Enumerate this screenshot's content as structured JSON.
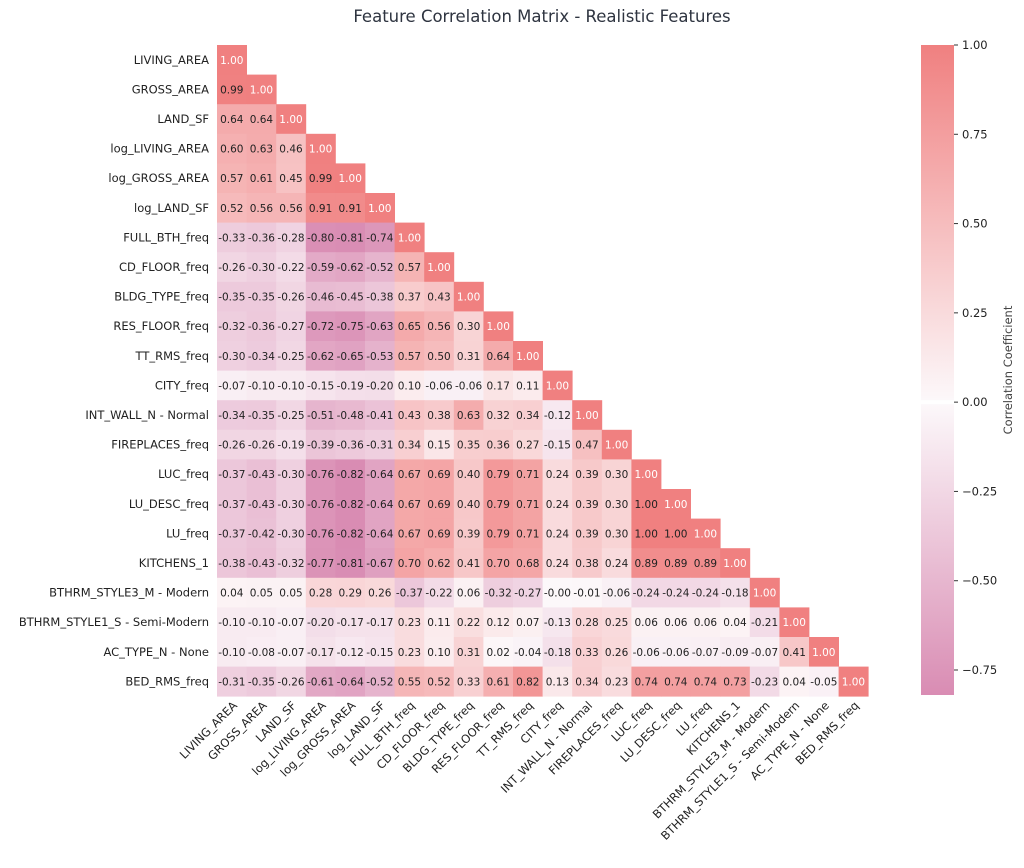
{
  "chart_data": {
    "type": "heatmap",
    "title": "Feature Correlation Matrix - Realistic Features",
    "labels": [
      "LIVING_AREA",
      "GROSS_AREA",
      "LAND_SF",
      "log_LIVING_AREA",
      "log_GROSS_AREA",
      "log_LAND_SF",
      "FULL_BTH_freq",
      "CD_FLOOR_freq",
      "BLDG_TYPE_freq",
      "RES_FLOOR_freq",
      "TT_RMS_freq",
      "CITY_freq",
      "INT_WALL_N - Normal",
      "FIREPLACES_freq",
      "LUC_freq",
      "LU_DESC_freq",
      "LU_freq",
      "KITCHENS_1",
      "BTHRM_STYLE3_M - Modern",
      "BTHRM_STYLE1_S - Semi-Modern",
      "AC_TYPE_N - None",
      "BED_RMS_freq"
    ],
    "matrix": [
      [
        1.0
      ],
      [
        0.99,
        1.0
      ],
      [
        0.64,
        0.64,
        1.0
      ],
      [
        0.6,
        0.63,
        0.46,
        1.0
      ],
      [
        0.57,
        0.61,
        0.45,
        0.99,
        1.0
      ],
      [
        0.52,
        0.56,
        0.56,
        0.91,
        0.91,
        1.0
      ],
      [
        -0.33,
        -0.36,
        -0.28,
        -0.8,
        -0.81,
        -0.74,
        1.0
      ],
      [
        -0.26,
        -0.3,
        -0.22,
        -0.59,
        -0.62,
        -0.52,
        0.57,
        1.0
      ],
      [
        -0.35,
        -0.35,
        -0.26,
        -0.46,
        -0.45,
        -0.38,
        0.37,
        0.43,
        1.0
      ],
      [
        -0.32,
        -0.36,
        -0.27,
        -0.72,
        -0.75,
        -0.63,
        0.65,
        0.56,
        0.3,
        1.0
      ],
      [
        -0.3,
        -0.34,
        -0.25,
        -0.62,
        -0.65,
        -0.53,
        0.57,
        0.5,
        0.31,
        0.64,
        1.0
      ],
      [
        -0.07,
        -0.1,
        -0.1,
        -0.15,
        -0.19,
        -0.2,
        0.1,
        -0.06,
        -0.06,
        0.17,
        0.11,
        1.0
      ],
      [
        -0.34,
        -0.35,
        -0.25,
        -0.51,
        -0.48,
        -0.41,
        0.43,
        0.38,
        0.63,
        0.32,
        0.34,
        -0.12,
        1.0
      ],
      [
        -0.26,
        -0.26,
        -0.19,
        -0.39,
        -0.36,
        -0.31,
        0.34,
        0.15,
        0.35,
        0.36,
        0.27,
        -0.15,
        0.47,
        1.0
      ],
      [
        -0.37,
        -0.43,
        -0.3,
        -0.76,
        -0.82,
        -0.64,
        0.67,
        0.69,
        0.4,
        0.79,
        0.71,
        0.24,
        0.39,
        0.3,
        1.0
      ],
      [
        -0.37,
        -0.43,
        -0.3,
        -0.76,
        -0.82,
        -0.64,
        0.67,
        0.69,
        0.4,
        0.79,
        0.71,
        0.24,
        0.39,
        0.3,
        1.0,
        1.0
      ],
      [
        -0.37,
        -0.42,
        -0.3,
        -0.76,
        -0.82,
        -0.64,
        0.67,
        0.69,
        0.39,
        0.79,
        0.71,
        0.24,
        0.39,
        0.3,
        1.0,
        1.0,
        1.0
      ],
      [
        -0.38,
        -0.43,
        -0.32,
        -0.77,
        -0.81,
        -0.67,
        0.7,
        0.62,
        0.41,
        0.7,
        0.68,
        0.24,
        0.38,
        0.24,
        0.89,
        0.89,
        0.89,
        1.0
      ],
      [
        0.04,
        0.05,
        0.05,
        0.28,
        0.29,
        0.26,
        -0.37,
        -0.22,
        0.06,
        -0.32,
        -0.27,
        -0.0,
        -0.01,
        -0.06,
        -0.24,
        -0.24,
        -0.24,
        -0.18,
        1.0
      ],
      [
        -0.1,
        -0.1,
        -0.07,
        -0.2,
        -0.17,
        -0.17,
        0.23,
        0.11,
        0.22,
        0.12,
        0.07,
        -0.13,
        0.28,
        0.25,
        0.06,
        0.06,
        0.06,
        0.04,
        -0.21,
        1.0
      ],
      [
        -0.1,
        -0.08,
        -0.07,
        -0.17,
        -0.12,
        -0.15,
        0.23,
        0.1,
        0.31,
        0.02,
        -0.04,
        -0.18,
        0.33,
        0.26,
        -0.06,
        -0.06,
        -0.07,
        -0.09,
        -0.07,
        0.41,
        1.0
      ],
      [
        -0.31,
        -0.35,
        -0.26,
        -0.61,
        -0.64,
        -0.52,
        0.55,
        0.52,
        0.33,
        0.61,
        0.82,
        0.13,
        0.34,
        0.23,
        0.74,
        0.74,
        0.74,
        0.73,
        -0.23,
        0.04,
        -0.05,
        1.0
      ]
    ],
    "colorbar": {
      "label": "Correlation Coefficient",
      "min": -0.82,
      "max": 1.0,
      "ticks": [
        "1.00",
        "0.75",
        "0.50",
        "0.25",
        "0.00",
        "−0.25",
        "−0.50",
        "−0.75"
      ],
      "tick_values": [
        1.0,
        0.75,
        0.5,
        0.25,
        0.0,
        -0.25,
        -0.5,
        -0.75
      ]
    },
    "colors": {
      "positive": "#f08080",
      "center": "#fcf8fa",
      "negative": "#d98cb3",
      "text_dark": "#222222",
      "text_light": "#ffffff"
    },
    "mask": "upper-triangle"
  }
}
